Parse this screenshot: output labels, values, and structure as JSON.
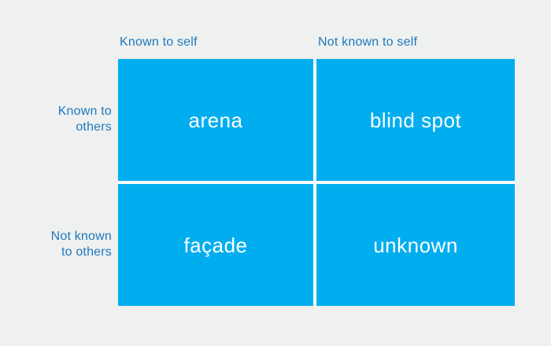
{
  "colors": {
    "background": "#EFF0F0",
    "quadrant-fill": "#00AEEF",
    "axis-label": "#1E78BE",
    "quadrant-label": "#FFFFFF",
    "grid-gap": "#FFFFFF"
  },
  "matrix": {
    "column_headers": [
      {
        "label": "Known to self"
      },
      {
        "label": "Not known to self"
      }
    ],
    "row_headers": [
      {
        "label": "Known to\nothers"
      },
      {
        "label": "Not known\nto others"
      }
    ],
    "quadrants": [
      {
        "label": "arena"
      },
      {
        "label": "blind spot"
      },
      {
        "label": "façade"
      },
      {
        "label": "unknown"
      }
    ]
  }
}
